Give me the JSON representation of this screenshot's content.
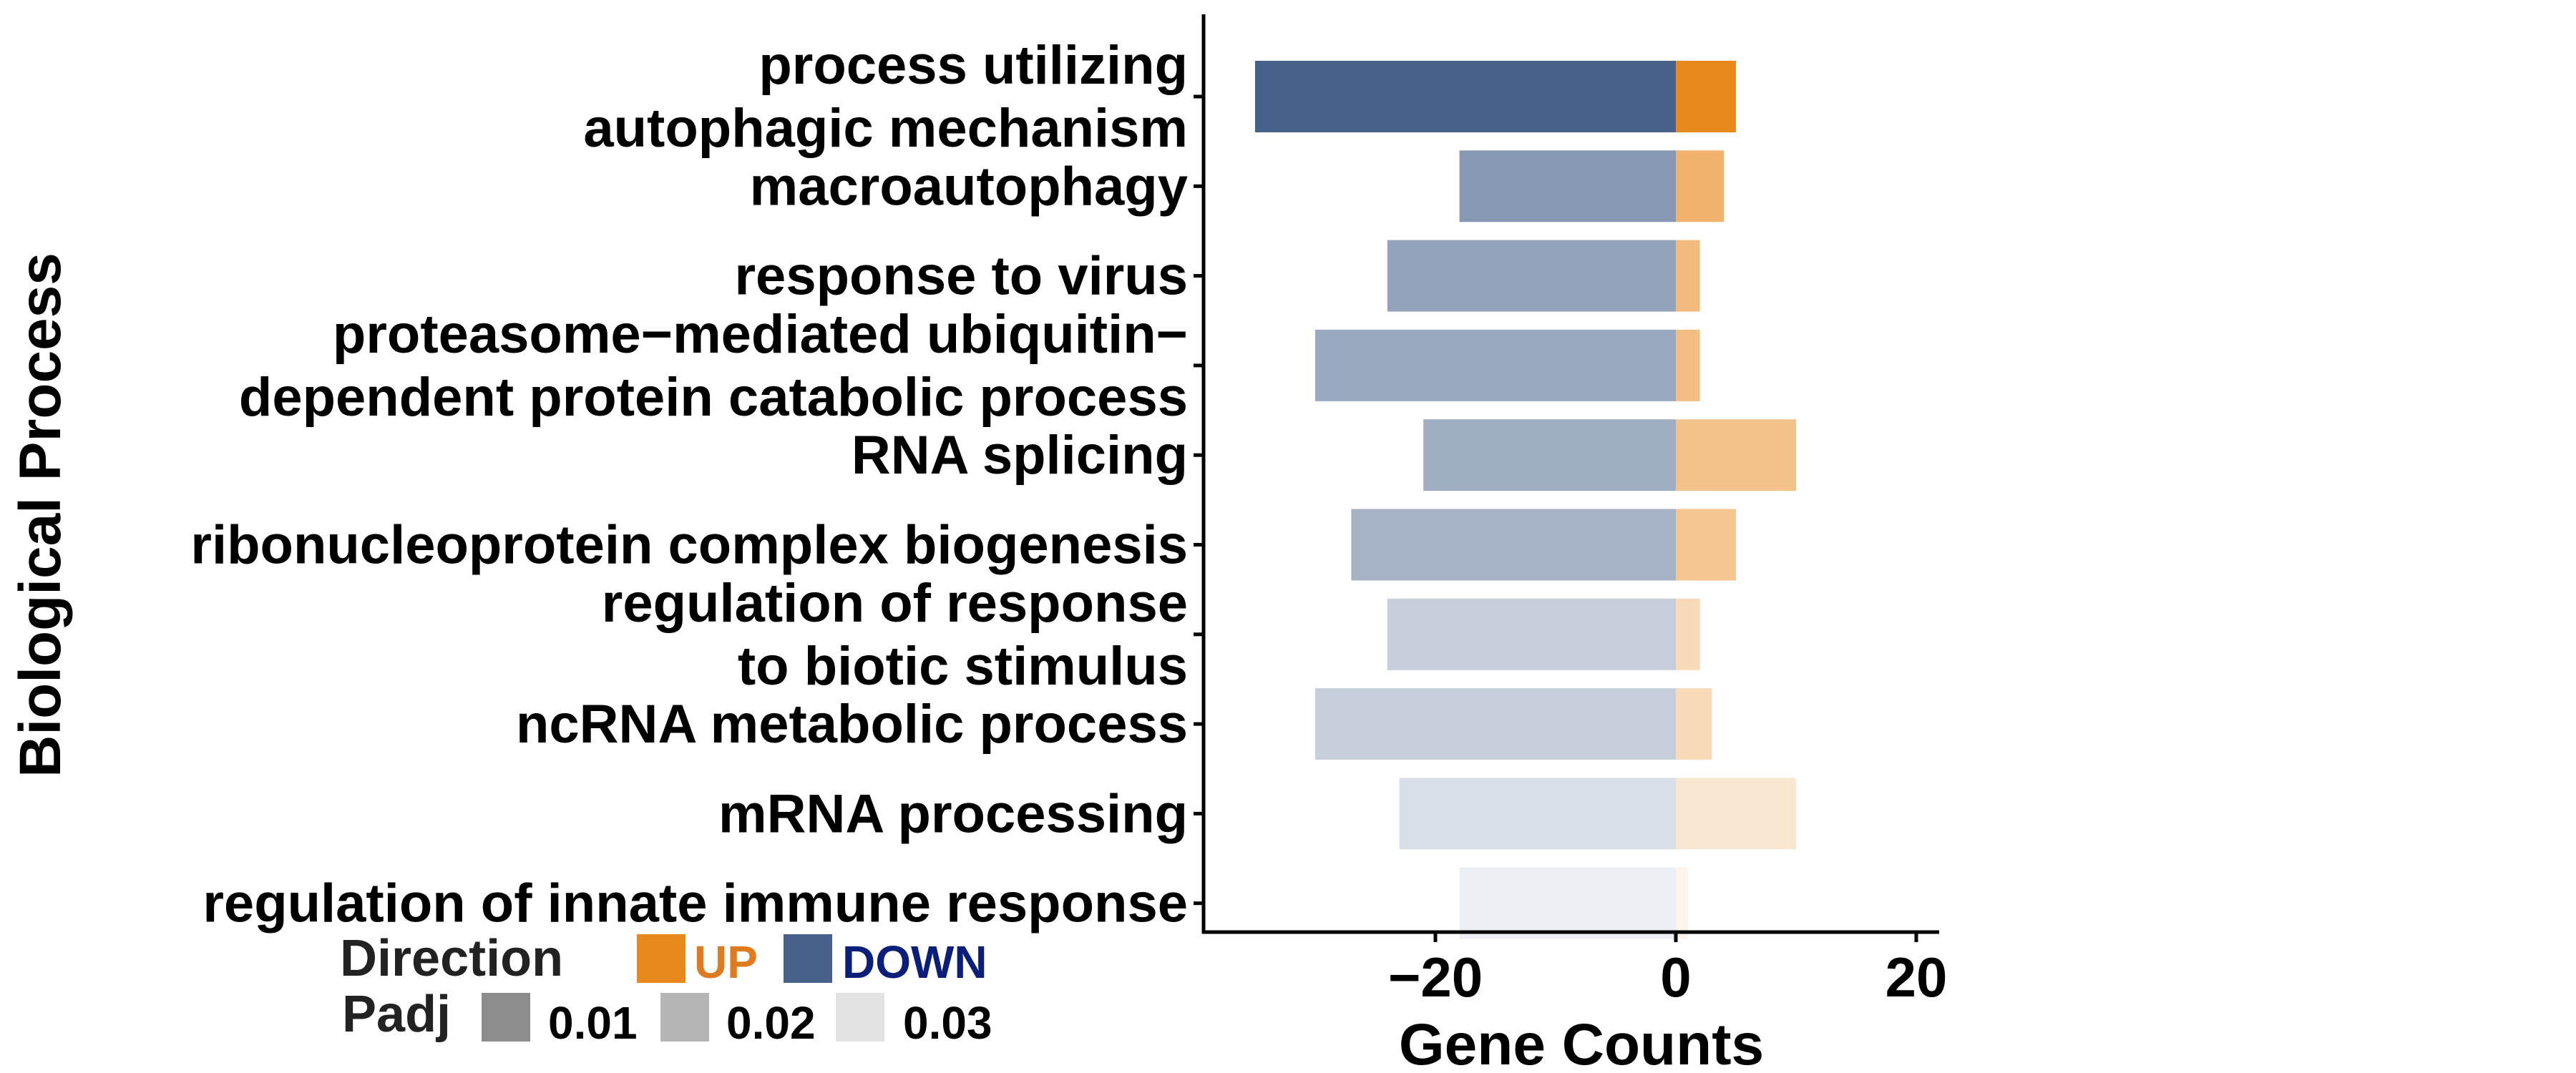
{
  "chart_data": {
    "type": "bar",
    "orientation": "horizontal",
    "xlabel": "Gene Counts",
    "ylabel": "Biological Process",
    "xlim": [
      -36,
      22
    ],
    "xticks": [
      -20,
      0,
      20
    ],
    "xtick_labels": [
      "−20",
      "0",
      "20"
    ],
    "grid": false,
    "legend_position": "bottom-left",
    "colors": {
      "up": "#E8891E",
      "down": "#46628A"
    },
    "categories": [
      [
        "process utilizing",
        "autophagic mechanism"
      ],
      [
        "macroautophagy"
      ],
      [
        "response to virus"
      ],
      [
        "proteasome−mediated ubiquitin−",
        "dependent protein catabolic process"
      ],
      [
        "RNA splicing"
      ],
      [
        "ribonucleoprotein complex biogenesis"
      ],
      [
        "regulation of response",
        "to biotic stimulus"
      ],
      [
        "ncRNA metabolic process"
      ],
      [
        "mRNA processing"
      ],
      [
        "regulation of innate immune response"
      ]
    ],
    "series": [
      {
        "name": "UP",
        "color": "#E8891E",
        "values": [
          5,
          4,
          2,
          2,
          10,
          5,
          2,
          3,
          10,
          1
        ]
      },
      {
        "name": "DOWN",
        "color": "#46628A",
        "values": [
          -35,
          -18,
          -24,
          -30,
          -21,
          -27,
          -24,
          -30,
          -23,
          -18
        ]
      }
    ],
    "padj": [
      0.002,
      0.012,
      0.014,
      0.015,
      0.016,
      0.017,
      0.022,
      0.022,
      0.025,
      0.028
    ],
    "legend": {
      "direction_title": "Direction",
      "direction_items": [
        {
          "label": "UP",
          "color": "#E8891E",
          "text_color": "#E07A1F"
        },
        {
          "label": "DOWN",
          "color": "#46628A",
          "text_color": "#0A1E7A"
        }
      ],
      "padj_title": "Padj",
      "padj_items": [
        {
          "label": "0.01",
          "color": "#8C8C8C"
        },
        {
          "label": "0.02",
          "color": "#B5B5B5"
        },
        {
          "label": "0.03",
          "color": "#E3E3E3"
        }
      ]
    }
  }
}
